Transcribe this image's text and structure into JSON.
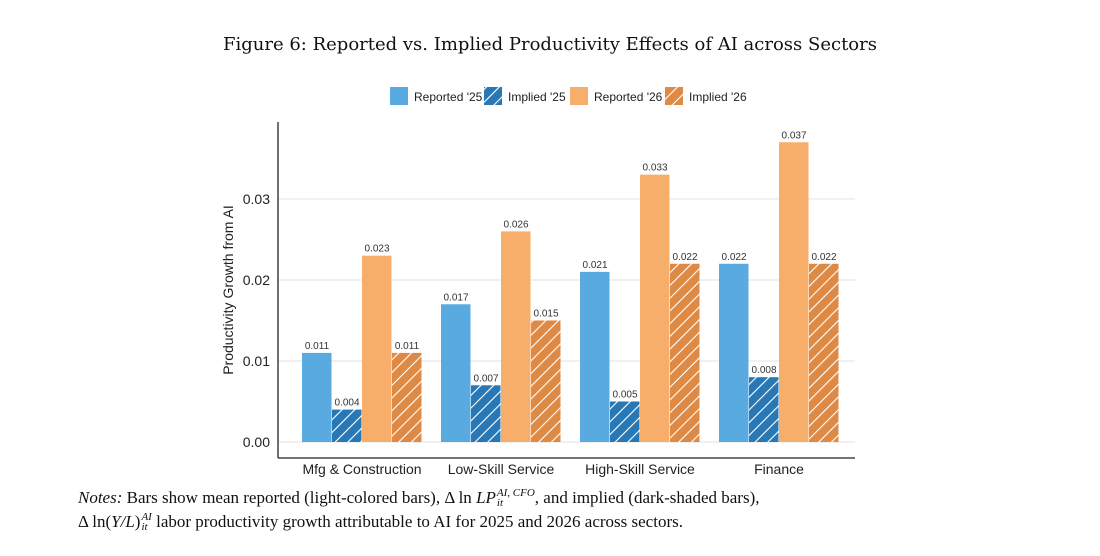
{
  "title": "Figure 6: Reported vs. Implied Productivity Effects of AI across Sectors",
  "chart_data": {
    "type": "bar",
    "title": "Figure 6: Reported vs. Implied Productivity Effects of AI across Sectors",
    "xlabel": "",
    "ylabel": "Productivity Growth from AI",
    "ylim": [
      0,
      0.0395
    ],
    "yticks": [
      0,
      0.01,
      0.02,
      0.03
    ],
    "ytick_labels": [
      "0.00",
      "0.01",
      "0.02",
      "0.03"
    ],
    "grid": true,
    "legend_position": "top",
    "categories": [
      "Mfg & Construction",
      "Low-Skill Service",
      "High-Skill Service",
      "Finance"
    ],
    "series": [
      {
        "name": "Reported '25",
        "values": [
          0.011,
          0.017,
          0.021,
          0.022
        ],
        "labels": [
          "0.011",
          "0.017",
          "0.021",
          "0.022"
        ],
        "color": "#58aae0",
        "hatched": false
      },
      {
        "name": "Implied '25",
        "values": [
          0.004,
          0.007,
          0.005,
          0.008
        ],
        "labels": [
          "0.004",
          "0.007",
          "0.005",
          "0.008"
        ],
        "color": "#2878b5",
        "hatched": true
      },
      {
        "name": "Reported '26",
        "values": [
          0.023,
          0.026,
          0.033,
          0.037
        ],
        "labels": [
          "0.023",
          "0.026",
          "0.033",
          "0.037"
        ],
        "color": "#f8ae6b",
        "hatched": false
      },
      {
        "name": "Implied '26",
        "values": [
          0.011,
          0.015,
          0.022,
          0.022
        ],
        "labels": [
          "0.011",
          "0.015",
          "0.022",
          "0.022"
        ],
        "color": "#de8a45",
        "hatched": true
      }
    ]
  },
  "notes": {
    "label": "Notes:",
    "l1a": "Bars show mean reported (light-colored bars), Δ ln ",
    "lp": "LP",
    "lp_sup": "AI, CFO",
    "lp_sub": "it",
    "l1b": ", and implied (dark-shaded bars),",
    "l2a": "Δ ln(",
    "yl": "Y/L",
    "l2b": ")",
    "yl_sup": "AI",
    "yl_sub": "it",
    "l2c": " labor productivity growth attributable to AI for 2025 and 2026 across sectors."
  }
}
